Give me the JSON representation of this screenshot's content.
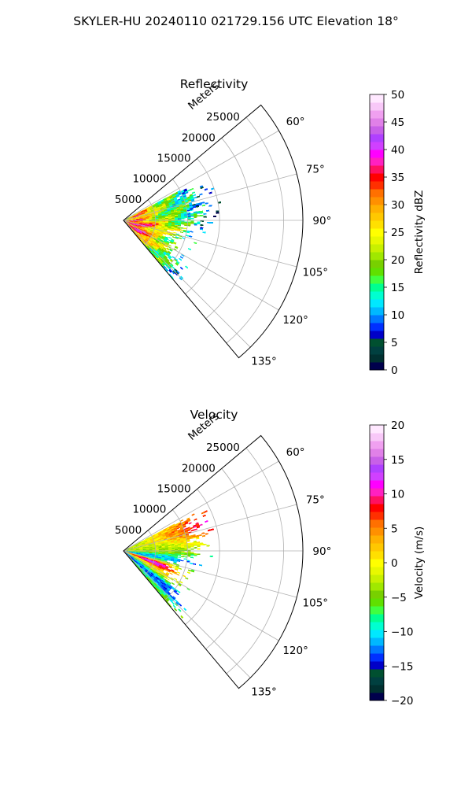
{
  "figure": {
    "title": "SKYLER-HU  20240110  021729.156 UTC Elevation 18°"
  },
  "chart_data": [
    {
      "type": "heatmap",
      "projection": "polar-sector",
      "title": "Reflectivity",
      "range_axis_label": "Meters",
      "range_ticks": [
        "5000",
        "10000",
        "15000",
        "20000",
        "25000"
      ],
      "range_tick_values": [
        5000,
        10000,
        15000,
        20000,
        25000
      ],
      "range_lim": [
        0,
        28000
      ],
      "azimuth_lim_deg": [
        50,
        140
      ],
      "azimuth_ticks": [
        "60°",
        "75°",
        "90°",
        "105°",
        "120°",
        "135°"
      ],
      "azimuth_tick_values": [
        60,
        75,
        90,
        105,
        120,
        135
      ],
      "grid": true,
      "field": "reflectivity",
      "colorbar": {
        "label": "Reflectivity dBZ",
        "lim": [
          0,
          50
        ],
        "ticks": [
          "0",
          "5",
          "10",
          "15",
          "20",
          "25",
          "30",
          "35",
          "40",
          "45",
          "50"
        ],
        "colors": [
          "#00004c",
          "#003030",
          "#004040",
          "#005030",
          "#0000c8",
          "#0030ff",
          "#0078ff",
          "#00b8ff",
          "#00e8ff",
          "#00ffd0",
          "#00ff90",
          "#40ff40",
          "#60e000",
          "#78d000",
          "#a0e800",
          "#c8f000",
          "#e8f800",
          "#ffff00",
          "#ffe000",
          "#ffc800",
          "#ffb000",
          "#ff9000",
          "#ff7000",
          "#ff3000",
          "#ff0000",
          "#ff1060",
          "#ff20c0",
          "#ff00ff",
          "#d040ff",
          "#b040ff",
          "#c860e8",
          "#e080e8",
          "#f0a0f0",
          "#f8c8f8",
          "#ffe8ff"
        ]
      }
    },
    {
      "type": "heatmap",
      "projection": "polar-sector",
      "title": "Velocity",
      "range_axis_label": "Meters",
      "range_ticks": [
        "5000",
        "10000",
        "15000",
        "20000",
        "25000"
      ],
      "range_tick_values": [
        5000,
        10000,
        15000,
        20000,
        25000
      ],
      "range_lim": [
        0,
        28000
      ],
      "azimuth_lim_deg": [
        50,
        140
      ],
      "azimuth_ticks": [
        "60°",
        "75°",
        "90°",
        "105°",
        "120°",
        "135°"
      ],
      "azimuth_tick_values": [
        60,
        75,
        90,
        105,
        120,
        135
      ],
      "grid": true,
      "field": "velocity",
      "colorbar": {
        "label": "Velocity (m/s)",
        "lim": [
          -20,
          20
        ],
        "ticks": [
          "−20",
          "−15",
          "−10",
          "−5",
          "0",
          "5",
          "10",
          "15",
          "20"
        ],
        "colors": [
          "#00004c",
          "#003030",
          "#004040",
          "#005030",
          "#0000c8",
          "#0030ff",
          "#0078ff",
          "#00b8ff",
          "#00e8ff",
          "#00ffd0",
          "#00ff90",
          "#40ff40",
          "#60e000",
          "#78d000",
          "#a0e800",
          "#c8f000",
          "#e8f800",
          "#ffff00",
          "#ffe000",
          "#ffc800",
          "#ffb000",
          "#ff9000",
          "#ff7000",
          "#ff3000",
          "#ff0000",
          "#ff1060",
          "#ff20c0",
          "#ff00ff",
          "#d040ff",
          "#b040ff",
          "#c860e8",
          "#e080e8",
          "#f0a0f0",
          "#f8c8f8",
          "#ffe8ff"
        ]
      }
    }
  ]
}
